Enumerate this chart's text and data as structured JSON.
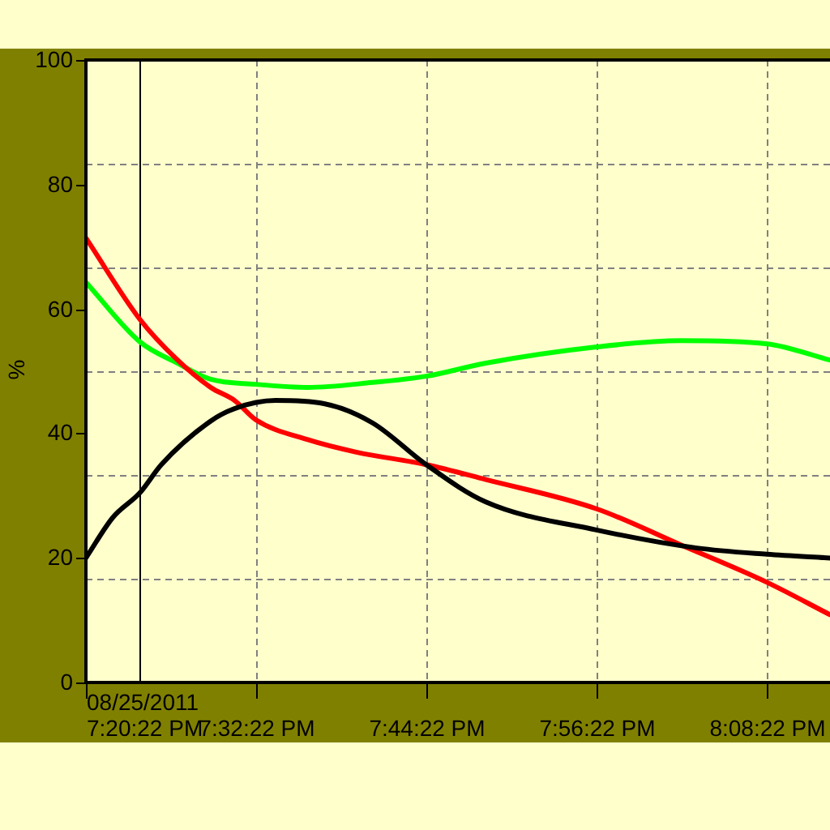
{
  "chart_data": {
    "type": "line",
    "ylabel": "%",
    "xlim": [
      19.33944,
      20.2132
    ],
    "xticks": [
      {
        "value": 19.33944,
        "label": "08/25/2011\n7:20:22 PM"
      },
      {
        "value": 19.53944,
        "label": "7:32:22 PM"
      },
      {
        "value": 19.73944,
        "label": "7:44:22 PM"
      },
      {
        "value": 19.93944,
        "label": "7:56:22 PM"
      },
      {
        "value": 20.13944,
        "label": "8:08:22 PM"
      }
    ],
    "ylim": [
      0,
      100
    ],
    "yticks": [
      0,
      20,
      40,
      60,
      80,
      100
    ],
    "grid": "x",
    "legend": false,
    "marker": "none",
    "line_style": "solid",
    "ref_lines": [
      {
        "axis": "x",
        "value": 19.403,
        "color": "#000000",
        "line_style": "solid"
      },
      {
        "axis": "y",
        "value": 16.67,
        "color": "#808080",
        "line_style": "dashed"
      },
      {
        "axis": "y",
        "value": 33.33,
        "color": "#808080",
        "line_style": "dashed"
      },
      {
        "axis": "y",
        "value": 50,
        "color": "#808080",
        "line_style": "dashed"
      },
      {
        "axis": "y",
        "value": 66.67,
        "color": "#808080",
        "line_style": "dashed"
      },
      {
        "axis": "y",
        "value": 83.33,
        "color": "#808080",
        "line_style": "dashed"
      }
    ],
    "series": [
      {
        "color": "#000000",
        "x": [
          19.33944,
          19.371,
          19.403,
          19.428,
          19.486,
          19.514,
          19.562,
          19.619,
          19.676,
          19.739,
          19.809,
          19.939,
          20.057,
          20.139,
          20.213
        ],
        "values": [
          20,
          26.5,
          30.5,
          35,
          42,
          44,
          45.3,
          44.8,
          41.7,
          35,
          29,
          24.5,
          21.6,
          20.6,
          20
        ]
      },
      {
        "color": "#ff0000",
        "x": [
          19.33944,
          19.403,
          19.447,
          19.486,
          19.514,
          19.539,
          19.6,
          19.657,
          19.739,
          19.809,
          19.939,
          20.038,
          20.139,
          20.213
        ],
        "values": [
          71.4,
          58.3,
          51.8,
          47.4,
          45.3,
          42.2,
          39,
          37,
          35,
          32.6,
          27.9,
          22.1,
          16.1,
          10.9
        ]
      },
      {
        "color": "#00ff00",
        "x": [
          19.33944,
          19.403,
          19.447,
          19.486,
          19.539,
          19.6,
          19.676,
          19.739,
          19.809,
          19.939,
          20.038,
          20.139,
          20.213
        ],
        "values": [
          64.3,
          54.7,
          51.3,
          48.7,
          47.9,
          47.4,
          48.2,
          49.2,
          51.3,
          53.9,
          54.9,
          54.4,
          51.8
        ]
      }
    ]
  }
}
